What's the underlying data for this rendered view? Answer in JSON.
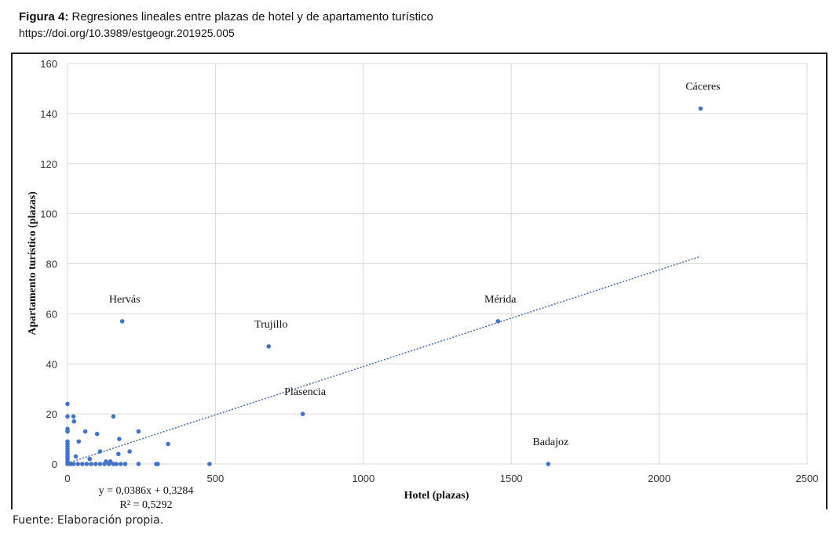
{
  "caption": {
    "figure_label": "Figura 4:",
    "title": " Regresiones lineales entre plazas de hotel y de apartamento turístico",
    "doi": "https://doi.org/10.3989/estgeogr.201925.005"
  },
  "source": "Fuente: Elaboración propia.",
  "chart_data": {
    "type": "scatter",
    "xlabel": "Hotel (plazas)",
    "ylabel": "Apartamento turístico (plazas)",
    "xlim": [
      0,
      2500
    ],
    "ylim": [
      0,
      160
    ],
    "xticks": [
      0,
      500,
      1000,
      1500,
      2000,
      2500
    ],
    "yticks": [
      0,
      20,
      40,
      60,
      80,
      100,
      120,
      140,
      160
    ],
    "grid": true,
    "points": [
      {
        "x": 2140,
        "y": 142,
        "label": "Cáceres"
      },
      {
        "x": 1455,
        "y": 57,
        "label": "Mérida"
      },
      {
        "x": 185,
        "y": 57,
        "label": "Hervás"
      },
      {
        "x": 680,
        "y": 47,
        "label": "Trujillo"
      },
      {
        "x": 795,
        "y": 20,
        "label": "Plasencia"
      },
      {
        "x": 1625,
        "y": 0,
        "label": "Badajoz"
      },
      {
        "x": 0,
        "y": 24
      },
      {
        "x": 0,
        "y": 19
      },
      {
        "x": 0,
        "y": 14
      },
      {
        "x": 0,
        "y": 13
      },
      {
        "x": 0,
        "y": 9
      },
      {
        "x": 0,
        "y": 8
      },
      {
        "x": 0,
        "y": 7
      },
      {
        "x": 0,
        "y": 6
      },
      {
        "x": 0,
        "y": 5
      },
      {
        "x": 0,
        "y": 4
      },
      {
        "x": 0,
        "y": 3
      },
      {
        "x": 0,
        "y": 2
      },
      {
        "x": 0,
        "y": 1
      },
      {
        "x": 0,
        "y": 0
      },
      {
        "x": 20,
        "y": 19
      },
      {
        "x": 22,
        "y": 17
      },
      {
        "x": 28,
        "y": 3
      },
      {
        "x": 38,
        "y": 9
      },
      {
        "x": 60,
        "y": 13
      },
      {
        "x": 75,
        "y": 2
      },
      {
        "x": 100,
        "y": 12
      },
      {
        "x": 110,
        "y": 5
      },
      {
        "x": 155,
        "y": 19
      },
      {
        "x": 172,
        "y": 4
      },
      {
        "x": 175,
        "y": 10
      },
      {
        "x": 210,
        "y": 5
      },
      {
        "x": 240,
        "y": 13
      },
      {
        "x": 340,
        "y": 8
      },
      {
        "x": 10,
        "y": 0
      },
      {
        "x": 20,
        "y": 0
      },
      {
        "x": 35,
        "y": 0
      },
      {
        "x": 50,
        "y": 0
      },
      {
        "x": 65,
        "y": 0
      },
      {
        "x": 80,
        "y": 0
      },
      {
        "x": 95,
        "y": 0
      },
      {
        "x": 110,
        "y": 0
      },
      {
        "x": 125,
        "y": 0
      },
      {
        "x": 130,
        "y": 1
      },
      {
        "x": 140,
        "y": 0
      },
      {
        "x": 145,
        "y": 1
      },
      {
        "x": 155,
        "y": 0
      },
      {
        "x": 165,
        "y": 0
      },
      {
        "x": 180,
        "y": 0
      },
      {
        "x": 195,
        "y": 0
      },
      {
        "x": 240,
        "y": 0
      },
      {
        "x": 300,
        "y": 0
      },
      {
        "x": 305,
        "y": 0
      },
      {
        "x": 480,
        "y": 0
      }
    ],
    "trendline": {
      "slope": 0.0386,
      "intercept": 0.3284,
      "x_range": [
        0,
        2140
      ],
      "equation": "y = 0,0386x + 0,3284",
      "r2": "R² = 0,5292"
    }
  }
}
